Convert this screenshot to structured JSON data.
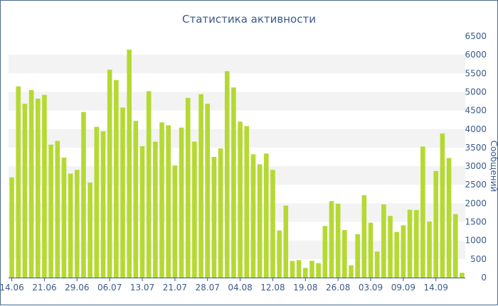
{
  "chart_data": {
    "type": "bar",
    "title": "Статистика активности",
    "xlabel": "",
    "ylabel": "Сообщений",
    "ylim": [
      0,
      6500
    ],
    "y_ticks": [
      0,
      500,
      1000,
      1500,
      2000,
      2500,
      3000,
      3500,
      4000,
      4500,
      5000,
      5500,
      6000,
      6500
    ],
    "x_tick_labels": [
      "14.06",
      "21.06",
      "29.06",
      "06.07",
      "13.07",
      "21.07",
      "28.07",
      "04.08",
      "12.08",
      "19.08",
      "26.08",
      "03.09",
      "09.09",
      "14.09"
    ],
    "x_tick_positions": [
      0,
      5,
      10,
      15,
      20,
      25,
      30,
      35,
      40,
      45,
      50,
      55,
      60,
      65
    ],
    "grid": "alternating horizontal bands",
    "series": [
      {
        "color": "#b5d932",
        "values": [
          2700,
          5150,
          4680,
          5050,
          4820,
          4920,
          3580,
          3680,
          3230,
          2800,
          2900,
          4460,
          2560,
          4060,
          3940,
          5600,
          5320,
          4580,
          6140,
          4220,
          3540,
          5020,
          3660,
          4180,
          4100,
          3020,
          4040,
          4840,
          3660,
          4940,
          4680,
          3250,
          3480,
          5560,
          5120,
          4200,
          4080,
          3320,
          3050,
          3340,
          2900,
          1270,
          1940,
          450,
          470,
          260,
          450,
          390,
          1390,
          2060,
          1990,
          1280,
          330,
          1170,
          2220,
          1480,
          700,
          1970,
          1660,
          1230,
          1410,
          1830,
          1820,
          3530,
          1510,
          2870,
          3880,
          3220,
          1710,
          130
        ]
      }
    ]
  }
}
